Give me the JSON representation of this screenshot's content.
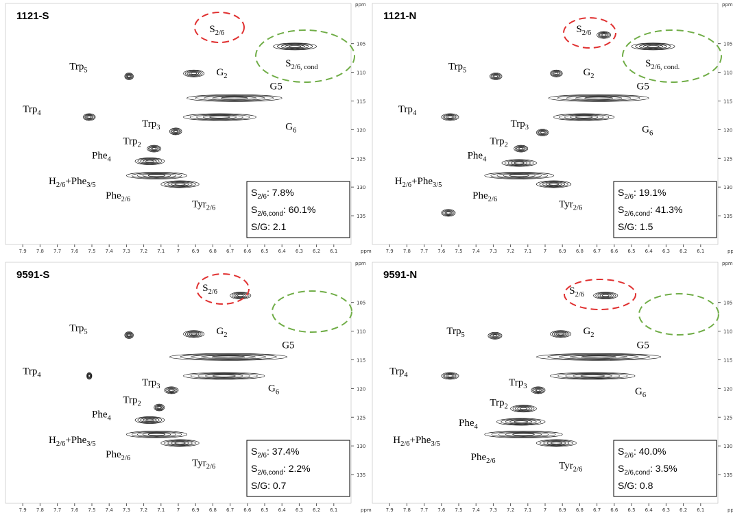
{
  "chart_data": [
    {
      "type": "contour",
      "title": "1121-S",
      "xlabel": "ppm",
      "ylabel": "ppm",
      "xlim": [
        8.0,
        6.0
      ],
      "ylim": [
        98,
        140
      ],
      "xticks": [
        7.9,
        7.8,
        7.7,
        7.6,
        7.5,
        7.4,
        7.3,
        7.2,
        7.1,
        7.0,
        6.9,
        6.8,
        6.7,
        6.6,
        6.5,
        6.4,
        6.3,
        6.2,
        6.1
      ],
      "yticks": [
        105,
        110,
        115,
        120,
        125,
        130,
        135
      ],
      "peaks": [
        {
          "x": [
            6.45,
            6.2
          ],
          "y": 105.5
        },
        {
          "x": [
            7.31,
            7.26
          ],
          "y": 110.7
        },
        {
          "x": [
            6.97,
            6.85
          ],
          "y": 110.2
        },
        {
          "x": [
            6.95,
            6.4
          ],
          "y": 114.5
        },
        {
          "x": [
            6.97,
            6.55
          ],
          "y": 117.8
        },
        {
          "x": [
            7.55,
            7.48
          ],
          "y": 117.8
        },
        {
          "x": [
            7.05,
            6.98
          ],
          "y": 120.3
        },
        {
          "x": [
            7.18,
            7.1
          ],
          "y": 123.3
        },
        {
          "x": [
            7.25,
            7.08
          ],
          "y": 125.5
        },
        {
          "x": [
            7.3,
            6.95
          ],
          "y": 128
        },
        {
          "x": [
            7.1,
            6.88
          ],
          "y": 129.5
        }
      ],
      "labels": [
        {
          "text": [
            "S",
            "2/6"
          ],
          "x": 6.82,
          "y": 103
        },
        {
          "text": [
            "S",
            "2/6, cond"
          ],
          "x": 6.38,
          "y": 109
        },
        {
          "text": [
            "Trp",
            "5"
          ],
          "x": 7.63,
          "y": 109.5
        },
        {
          "text": [
            "G",
            "2"
          ],
          "x": 6.78,
          "y": 110.5
        },
        {
          "text": [
            "G5"
          ],
          "x": 6.47,
          "y": 113
        },
        {
          "text": [
            "Trp",
            "4"
          ],
          "x": 7.9,
          "y": 117
        },
        {
          "text": [
            "Trp",
            "3"
          ],
          "x": 7.21,
          "y": 119.5
        },
        {
          "text": [
            "Trp",
            "2"
          ],
          "x": 7.32,
          "y": 122.5
        },
        {
          "text": [
            "G",
            "6"
          ],
          "x": 6.38,
          "y": 120
        },
        {
          "text": [
            "Phe",
            "4"
          ],
          "x": 7.5,
          "y": 125
        },
        {
          "text": [
            "H",
            "2/6",
            "+Phe",
            "3/5"
          ],
          "x": 7.75,
          "y": 129.5
        },
        {
          "text": [
            "Phe",
            "2/6"
          ],
          "x": 7.42,
          "y": 132
        },
        {
          "text": [
            "Tyr",
            "2/6"
          ],
          "x": 6.92,
          "y": 133.5
        }
      ],
      "stats": [
        [
          "S",
          "2/6",
          ": 7.8%"
        ],
        [
          "S",
          "2/6,cond",
          ": 60.1%"
        ],
        [
          "S/G: 2.1"
        ]
      ]
    },
    {
      "type": "contour",
      "title": "1121-N",
      "xlabel": "ppm",
      "ylabel": "ppm",
      "xlim": [
        8.0,
        6.0
      ],
      "ylim": [
        98,
        140
      ],
      "xticks": [
        7.9,
        7.8,
        7.7,
        7.6,
        7.5,
        7.4,
        7.3,
        7.2,
        7.1,
        7.0,
        6.9,
        6.8,
        6.7,
        6.6,
        6.5,
        6.4,
        6.3,
        6.2,
        6.1
      ],
      "yticks": [
        105,
        110,
        115,
        120,
        125,
        130,
        135
      ],
      "peaks": [
        {
          "x": [
            6.7,
            6.62
          ],
          "y": 103.5
        },
        {
          "x": [
            6.5,
            6.25
          ],
          "y": 105.5
        },
        {
          "x": [
            7.32,
            7.25
          ],
          "y": 110.7
        },
        {
          "x": [
            6.97,
            6.9
          ],
          "y": 110.2
        },
        {
          "x": [
            6.98,
            6.4
          ],
          "y": 114.5
        },
        {
          "x": [
            6.95,
            6.6
          ],
          "y": 117.8
        },
        {
          "x": [
            7.6,
            7.5
          ],
          "y": 117.8
        },
        {
          "x": [
            7.05,
            6.98
          ],
          "y": 120.5
        },
        {
          "x": [
            7.18,
            7.1
          ],
          "y": 123.3
        },
        {
          "x": [
            7.25,
            7.05
          ],
          "y": 125.8
        },
        {
          "x": [
            7.35,
            6.95
          ],
          "y": 128
        },
        {
          "x": [
            7.05,
            6.85
          ],
          "y": 129.5
        },
        {
          "x": [
            7.6,
            7.52
          ],
          "y": 134.5
        }
      ],
      "labels": [
        {
          "text": [
            "S",
            "2/6"
          ],
          "x": 6.82,
          "y": 103
        },
        {
          "text": [
            "S",
            "2/6, cond."
          ],
          "x": 6.42,
          "y": 109
        },
        {
          "text": [
            "Trp",
            "5"
          ],
          "x": 7.56,
          "y": 109.5
        },
        {
          "text": [
            "G",
            "2"
          ],
          "x": 6.78,
          "y": 110.5
        },
        {
          "text": [
            "G5"
          ],
          "x": 6.47,
          "y": 113
        },
        {
          "text": [
            "Trp",
            "4"
          ],
          "x": 7.85,
          "y": 117
        },
        {
          "text": [
            "Trp",
            "3"
          ],
          "x": 7.2,
          "y": 119.5
        },
        {
          "text": [
            "Trp",
            "2"
          ],
          "x": 7.32,
          "y": 122.5
        },
        {
          "text": [
            "G",
            "6"
          ],
          "x": 6.44,
          "y": 120.5
        },
        {
          "text": [
            "Phe",
            "4"
          ],
          "x": 7.45,
          "y": 125
        },
        {
          "text": [
            "H",
            "2/6",
            "+Phe",
            "3/5"
          ],
          "x": 7.87,
          "y": 129.5
        },
        {
          "text": [
            "Phe",
            "2/6"
          ],
          "x": 7.42,
          "y": 132
        },
        {
          "text": [
            "Tyr",
            "2/6"
          ],
          "x": 6.92,
          "y": 133.5
        }
      ],
      "stats": [
        [
          "S",
          "2/6",
          ": 19.1%"
        ],
        [
          "S",
          "2/6,cond",
          ": 41.3%"
        ],
        [
          "S/G: 1.5"
        ]
      ]
    },
    {
      "type": "contour",
      "title": "9591-S",
      "xlabel": "ppm",
      "ylabel": "ppm",
      "xlim": [
        8.0,
        6.0
      ],
      "ylim": [
        98,
        140
      ],
      "xticks": [
        7.9,
        7.8,
        7.7,
        7.6,
        7.5,
        7.4,
        7.3,
        7.2,
        7.1,
        7.0,
        6.9,
        6.8,
        6.7,
        6.6,
        6.5,
        6.4,
        6.3,
        6.2,
        6.1
      ],
      "yticks": [
        105,
        110,
        115,
        120,
        125,
        130,
        135
      ],
      "peaks": [
        {
          "x": [
            6.7,
            6.58
          ],
          "y": 103.8
        },
        {
          "x": [
            7.31,
            7.26
          ],
          "y": 110.7
        },
        {
          "x": [
            6.97,
            6.85
          ],
          "y": 110.5
        },
        {
          "x": [
            7.05,
            6.37
          ],
          "y": 114.5
        },
        {
          "x": [
            6.97,
            6.5
          ],
          "y": 117.8
        },
        {
          "x": [
            7.53,
            7.5
          ],
          "y": 117.8
        },
        {
          "x": [
            7.08,
            7.0
          ],
          "y": 120.3
        },
        {
          "x": [
            7.14,
            7.08
          ],
          "y": 123.3
        },
        {
          "x": [
            7.25,
            7.08
          ],
          "y": 125.5
        },
        {
          "x": [
            7.3,
            6.95
          ],
          "y": 128
        },
        {
          "x": [
            7.1,
            6.88
          ],
          "y": 129.5
        }
      ],
      "labels": [
        {
          "text": [
            "S",
            "2/6"
          ],
          "x": 6.86,
          "y": 103
        },
        {
          "text": [
            "Trp",
            "5"
          ],
          "x": 7.63,
          "y": 110
        },
        {
          "text": [
            "G",
            "2"
          ],
          "x": 6.78,
          "y": 110.5
        },
        {
          "text": [
            "G5"
          ],
          "x": 6.4,
          "y": 113
        },
        {
          "text": [
            "Trp",
            "4"
          ],
          "x": 7.9,
          "y": 117.5
        },
        {
          "text": [
            "Trp",
            "3"
          ],
          "x": 7.21,
          "y": 119.5
        },
        {
          "text": [
            "Trp",
            "2"
          ],
          "x": 7.32,
          "y": 122.5
        },
        {
          "text": [
            "G",
            "6"
          ],
          "x": 6.48,
          "y": 120.5
        },
        {
          "text": [
            "Phe",
            "4"
          ],
          "x": 7.5,
          "y": 125
        },
        {
          "text": [
            "H",
            "2/6",
            "+Phe",
            "3/5"
          ],
          "x": 7.75,
          "y": 129.5
        },
        {
          "text": [
            "Phe",
            "2/6"
          ],
          "x": 7.42,
          "y": 132
        },
        {
          "text": [
            "Tyr",
            "2/6"
          ],
          "x": 6.92,
          "y": 133.5
        }
      ],
      "stats": [
        [
          "S",
          "2/6",
          ": 37.4%"
        ],
        [
          "S",
          "2/6,cond",
          ": 2.2%"
        ],
        [
          "S/G: 0.7"
        ]
      ]
    },
    {
      "type": "contour",
      "title": "9591-N",
      "xlabel": "ppm",
      "ylabel": "ppm",
      "xlim": [
        8.0,
        6.0
      ],
      "ylim": [
        98,
        140
      ],
      "xticks": [
        7.9,
        7.8,
        7.7,
        7.6,
        7.5,
        7.4,
        7.3,
        7.2,
        7.1,
        7.0,
        6.9,
        6.8,
        6.7,
        6.6,
        6.5,
        6.4,
        6.3,
        6.2,
        6.1
      ],
      "yticks": [
        105,
        110,
        115,
        120,
        125,
        130,
        135
      ],
      "peaks": [
        {
          "x": [
            6.72,
            6.58
          ],
          "y": 103.8
        },
        {
          "x": [
            7.33,
            7.25
          ],
          "y": 110.8
        },
        {
          "x": [
            6.97,
            6.85
          ],
          "y": 110.5
        },
        {
          "x": [
            7.05,
            6.33
          ],
          "y": 114.5
        },
        {
          "x": [
            6.97,
            6.48
          ],
          "y": 117.8
        },
        {
          "x": [
            7.6,
            7.5
          ],
          "y": 117.8
        },
        {
          "x": [
            7.08,
            7.0
          ],
          "y": 120.3
        },
        {
          "x": [
            7.2,
            7.05
          ],
          "y": 123.5
        },
        {
          "x": [
            7.28,
            7.0
          ],
          "y": 125.8
        },
        {
          "x": [
            7.35,
            6.9
          ],
          "y": 128
        },
        {
          "x": [
            7.05,
            6.82
          ],
          "y": 129.5
        }
      ],
      "labels": [
        {
          "text": [
            "S",
            "2/6"
          ],
          "x": 6.86,
          "y": 103.5
        },
        {
          "text": [
            "Trp",
            "5"
          ],
          "x": 7.57,
          "y": 110.5
        },
        {
          "text": [
            "G",
            "2"
          ],
          "x": 6.78,
          "y": 110.5
        },
        {
          "text": [
            "G5"
          ],
          "x": 6.47,
          "y": 113
        },
        {
          "text": [
            "Trp",
            "4"
          ],
          "x": 7.9,
          "y": 117.5
        },
        {
          "text": [
            "Trp",
            "3"
          ],
          "x": 7.21,
          "y": 119.5
        },
        {
          "text": [
            "Trp",
            "2"
          ],
          "x": 7.32,
          "y": 123
        },
        {
          "text": [
            "G",
            "6"
          ],
          "x": 6.48,
          "y": 121
        },
        {
          "text": [
            "Phe",
            "4"
          ],
          "x": 7.5,
          "y": 126.5
        },
        {
          "text": [
            "H",
            "2/6",
            "+Phe",
            "3/5"
          ],
          "x": 7.88,
          "y": 129.5
        },
        {
          "text": [
            "Phe",
            "2/6"
          ],
          "x": 7.43,
          "y": 132.5
        },
        {
          "text": [
            "Tyr",
            "2/6"
          ],
          "x": 6.92,
          "y": 134
        }
      ],
      "stats": [
        [
          "S",
          "2/6",
          ": 40.0%"
        ],
        [
          "S",
          "2/6,cond",
          ": 3.5%"
        ],
        [
          "S/G: 0.8"
        ]
      ]
    }
  ]
}
